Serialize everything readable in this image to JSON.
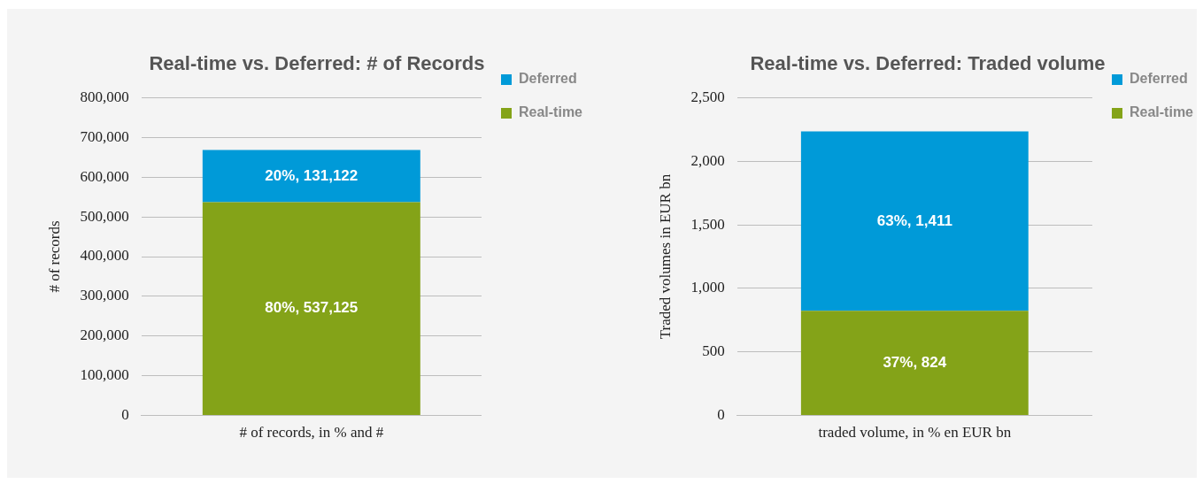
{
  "chart_data": [
    {
      "type": "bar",
      "title": "Real-time vs. Deferred: # of Records",
      "ylabel": "# of records",
      "categories": [
        "# of records, in % and #"
      ],
      "stacked": true,
      "ylim": [
        0,
        800000
      ],
      "yticks": [
        {
          "value": 0,
          "label": "0"
        },
        {
          "value": 100000,
          "label": "100,000"
        },
        {
          "value": 200000,
          "label": "200,000"
        },
        {
          "value": 300000,
          "label": "300,000"
        },
        {
          "value": 400000,
          "label": "400,000"
        },
        {
          "value": 500000,
          "label": "500,000"
        },
        {
          "value": 600000,
          "label": "600,000"
        },
        {
          "value": 700000,
          "label": "700,000"
        },
        {
          "value": 800000,
          "label": "800,000"
        }
      ],
      "grid": "y",
      "legend": "top right",
      "series": [
        {
          "name": "Real-time",
          "color": "#84a318",
          "values": [
            537125
          ],
          "value_labels": [
            "80%, 537,125"
          ]
        },
        {
          "name": "Deferred",
          "color": "#009ad8",
          "values": [
            131122
          ],
          "value_labels": [
            "20%, 131,122"
          ]
        }
      ]
    },
    {
      "type": "bar",
      "title": "Real-time vs. Deferred: Traded volume",
      "ylabel": "Traded volumes in EUR bn",
      "categories": [
        "traded volume, in % en EUR bn"
      ],
      "stacked": true,
      "ylim": [
        0,
        2500
      ],
      "yticks": [
        {
          "value": 0,
          "label": "0"
        },
        {
          "value": 500,
          "label": "500"
        },
        {
          "value": 1000,
          "label": "1,000"
        },
        {
          "value": 1500,
          "label": "1,500"
        },
        {
          "value": 2000,
          "label": "2,000"
        },
        {
          "value": 2500,
          "label": "2,500"
        }
      ],
      "grid": "y",
      "legend": "top right",
      "series": [
        {
          "name": "Real-time",
          "color": "#84a318",
          "values": [
            824
          ],
          "value_labels": [
            "37%, 824"
          ]
        },
        {
          "name": "Deferred",
          "color": "#009ad8",
          "values": [
            1411
          ],
          "value_labels": [
            "63%, 1,411"
          ]
        }
      ]
    }
  ]
}
